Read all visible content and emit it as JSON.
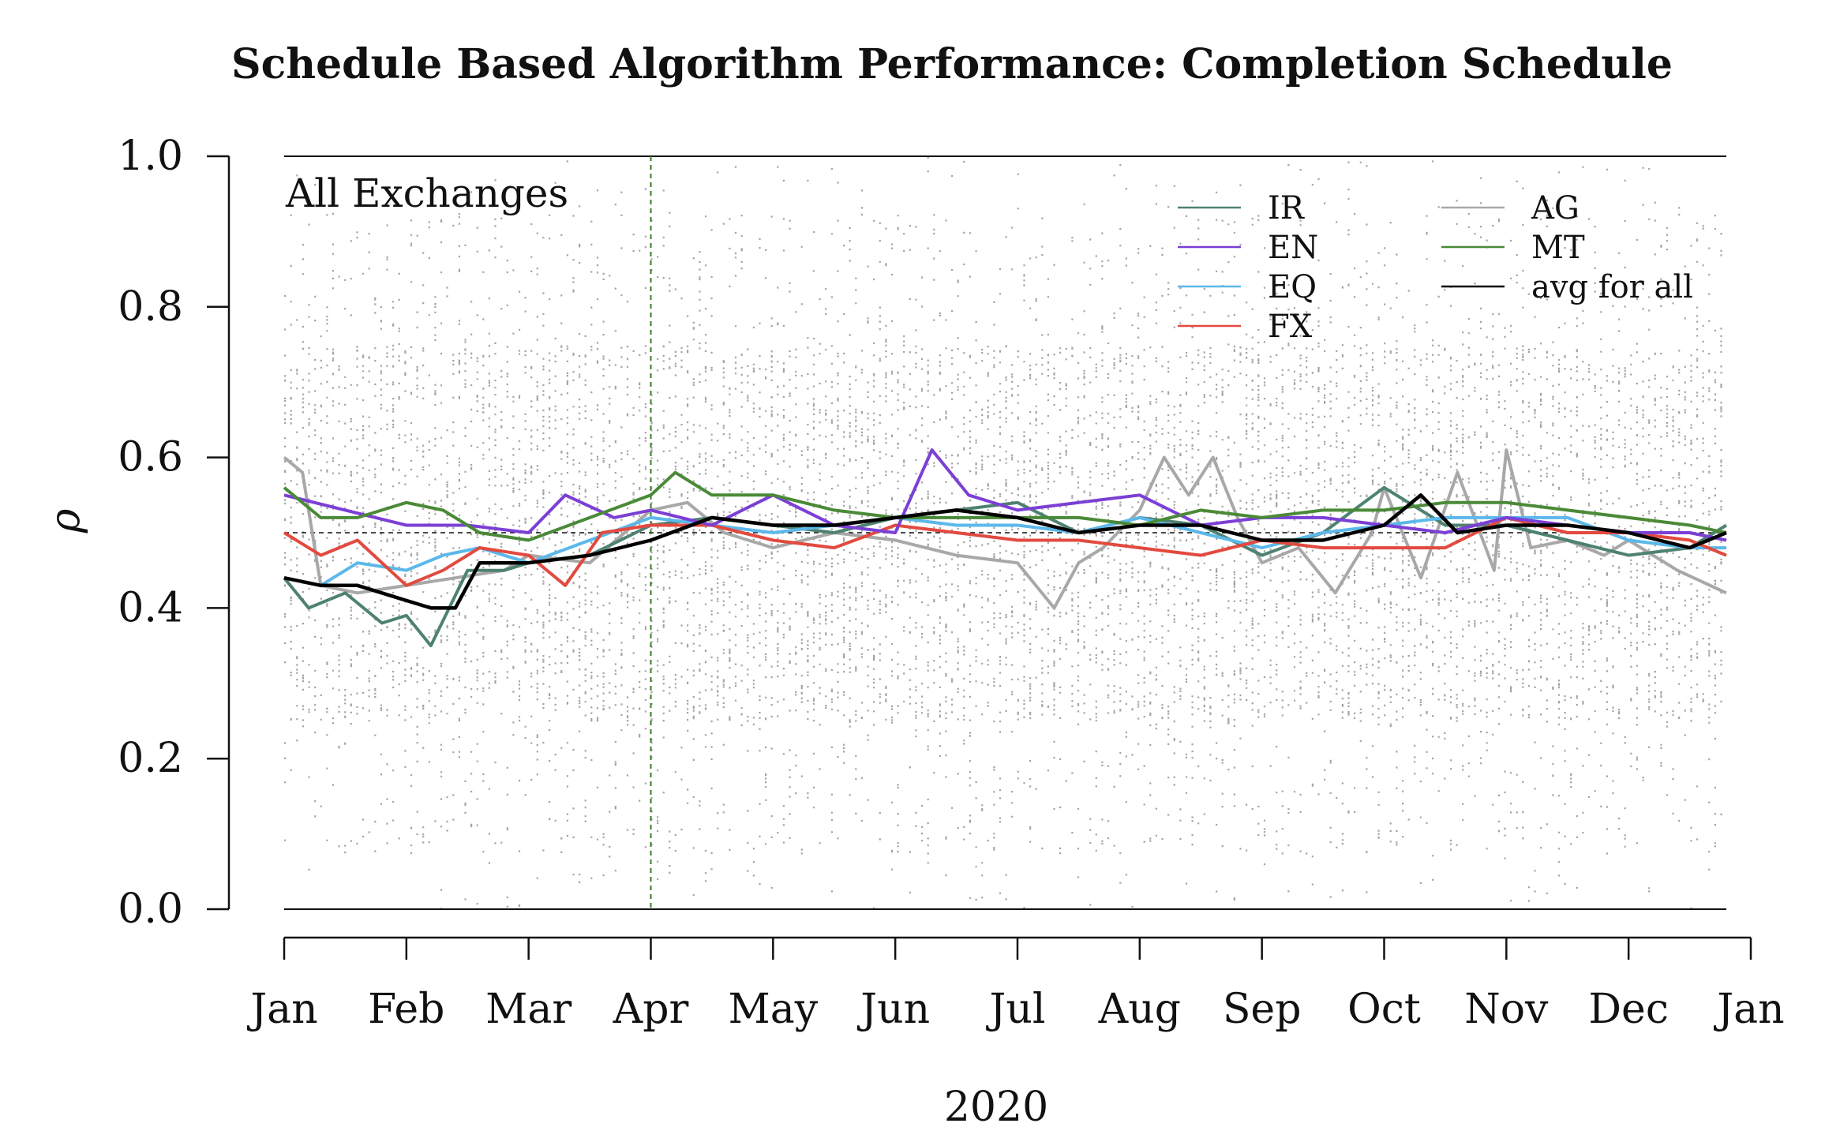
{
  "chart_data": {
    "type": "line",
    "title": "Schedule Based Algorithm Performance: Completion Schedule",
    "panel_label": "All Exchanges",
    "xlabel": "2020",
    "ylabel": "ρ",
    "ylim": [
      0,
      1
    ],
    "yticks": [
      "0.0",
      "0.2",
      "0.4",
      "0.6",
      "0.8",
      "1.0"
    ],
    "x_unit": "month of 2020 (1 = Jan 1, 13 = Jan 1 of next year)",
    "xlim": [
      1,
      13
    ],
    "xticks": [
      "Jan",
      "Feb",
      "Mar",
      "Apr",
      "May",
      "Jun",
      "Jul",
      "Aug",
      "Sep",
      "Oct",
      "Nov",
      "Dec",
      "Jan"
    ],
    "reference_line_y": 0.5,
    "vertical_marker_x": 4,
    "background_points": "dense grey per-day scatter of individual ρ values between 0 and 1",
    "legend_position": "top-right",
    "series": [
      {
        "name": "IR",
        "color": "#4e8270",
        "x": [
          1,
          1.2,
          1.5,
          1.8,
          2.0,
          2.2,
          2.5,
          2.8,
          3.0,
          3.5,
          4.0,
          4.5,
          5.0,
          5.5,
          6.0,
          6.5,
          7.0,
          7.5,
          8.0,
          8.5,
          9.0,
          9.5,
          10.0,
          10.5,
          11.0,
          11.5,
          12.0,
          12.5,
          12.8
        ],
        "y": [
          0.44,
          0.4,
          0.42,
          0.38,
          0.39,
          0.35,
          0.45,
          0.45,
          0.46,
          0.47,
          0.51,
          0.52,
          0.51,
          0.5,
          0.52,
          0.53,
          0.54,
          0.5,
          0.52,
          0.51,
          0.47,
          0.5,
          0.56,
          0.51,
          0.51,
          0.49,
          0.47,
          0.48,
          0.51
        ]
      },
      {
        "name": "EN",
        "color": "#7b3fd6",
        "x": [
          1,
          1.5,
          2.0,
          2.5,
          3.0,
          3.3,
          3.7,
          4.0,
          4.5,
          5.0,
          5.5,
          6.0,
          6.3,
          6.6,
          7.0,
          7.5,
          8.0,
          8.5,
          9.0,
          9.5,
          10.0,
          10.5,
          11.0,
          11.5,
          12.0,
          12.5,
          12.8
        ],
        "y": [
          0.55,
          0.53,
          0.51,
          0.51,
          0.5,
          0.55,
          0.52,
          0.53,
          0.51,
          0.55,
          0.51,
          0.5,
          0.61,
          0.55,
          0.53,
          0.54,
          0.55,
          0.51,
          0.52,
          0.52,
          0.51,
          0.5,
          0.52,
          0.51,
          0.5,
          0.5,
          0.49
        ]
      },
      {
        "name": "EQ",
        "color": "#5bb8ea",
        "x": [
          1,
          1.3,
          1.6,
          2.0,
          2.3,
          2.6,
          3.0,
          3.5,
          4.0,
          4.5,
          5.0,
          5.5,
          6.0,
          6.5,
          7.0,
          7.5,
          8.0,
          8.5,
          9.0,
          9.5,
          10.0,
          10.5,
          11.0,
          11.5,
          12.0,
          12.5,
          12.8
        ],
        "y": [
          0.44,
          0.43,
          0.46,
          0.45,
          0.47,
          0.48,
          0.46,
          0.49,
          0.52,
          0.51,
          0.5,
          0.51,
          0.52,
          0.51,
          0.51,
          0.5,
          0.52,
          0.5,
          0.48,
          0.5,
          0.51,
          0.52,
          0.52,
          0.52,
          0.49,
          0.48,
          0.48
        ]
      },
      {
        "name": "FX",
        "color": "#e24a3f",
        "x": [
          1,
          1.3,
          1.6,
          2.0,
          2.3,
          2.6,
          3.0,
          3.3,
          3.6,
          4.0,
          4.5,
          5.0,
          5.5,
          6.0,
          6.5,
          7.0,
          7.5,
          8.0,
          8.5,
          9.0,
          9.5,
          10.0,
          10.5,
          11.0,
          11.5,
          12.0,
          12.5,
          12.8
        ],
        "y": [
          0.5,
          0.47,
          0.49,
          0.43,
          0.45,
          0.48,
          0.47,
          0.43,
          0.5,
          0.51,
          0.51,
          0.49,
          0.48,
          0.51,
          0.5,
          0.49,
          0.49,
          0.48,
          0.47,
          0.49,
          0.48,
          0.48,
          0.48,
          0.52,
          0.5,
          0.5,
          0.49,
          0.47
        ]
      },
      {
        "name": "AG",
        "color": "#a8a8a8",
        "x": [
          1,
          1.15,
          1.3,
          1.6,
          2.0,
          2.4,
          2.8,
          3.0,
          3.5,
          4.0,
          4.3,
          4.6,
          5.0,
          5.5,
          6.0,
          6.5,
          7.0,
          7.3,
          7.5,
          7.7,
          8.0,
          8.2,
          8.4,
          8.6,
          8.8,
          9.0,
          9.3,
          9.6,
          9.9,
          10.0,
          10.3,
          10.6,
          10.9,
          11.0,
          11.2,
          11.5,
          11.8,
          12.0,
          12.4,
          12.8
        ],
        "y": [
          0.6,
          0.58,
          0.43,
          0.42,
          0.43,
          0.44,
          0.45,
          0.47,
          0.46,
          0.53,
          0.54,
          0.5,
          0.48,
          0.5,
          0.49,
          0.47,
          0.46,
          0.4,
          0.46,
          0.48,
          0.53,
          0.6,
          0.55,
          0.6,
          0.52,
          0.46,
          0.48,
          0.42,
          0.5,
          0.56,
          0.44,
          0.58,
          0.45,
          0.61,
          0.48,
          0.49,
          0.47,
          0.49,
          0.45,
          0.42
        ]
      },
      {
        "name": "MT",
        "color": "#4a8a37",
        "x": [
          1,
          1.3,
          1.6,
          2.0,
          2.3,
          2.6,
          3.0,
          3.5,
          4.0,
          4.2,
          4.5,
          5.0,
          5.5,
          6.0,
          6.5,
          7.0,
          7.5,
          8.0,
          8.5,
          9.0,
          9.5,
          10.0,
          10.5,
          11.0,
          11.5,
          12.0,
          12.5,
          12.8
        ],
        "y": [
          0.56,
          0.52,
          0.52,
          0.54,
          0.53,
          0.5,
          0.49,
          0.52,
          0.55,
          0.58,
          0.55,
          0.55,
          0.53,
          0.52,
          0.52,
          0.52,
          0.52,
          0.51,
          0.53,
          0.52,
          0.53,
          0.53,
          0.54,
          0.54,
          0.53,
          0.52,
          0.51,
          0.5
        ]
      },
      {
        "name": "avg for all",
        "color": "#000000",
        "x": [
          1,
          1.3,
          1.6,
          2.0,
          2.2,
          2.4,
          2.6,
          3.0,
          3.5,
          4.0,
          4.5,
          5.0,
          5.5,
          6.0,
          6.5,
          7.0,
          7.5,
          8.0,
          8.5,
          9.0,
          9.5,
          10.0,
          10.3,
          10.6,
          11.0,
          11.5,
          12.0,
          12.5,
          12.8
        ],
        "y": [
          0.44,
          0.43,
          0.43,
          0.41,
          0.4,
          0.4,
          0.46,
          0.46,
          0.47,
          0.49,
          0.52,
          0.51,
          0.51,
          0.52,
          0.53,
          0.52,
          0.5,
          0.51,
          0.51,
          0.49,
          0.49,
          0.51,
          0.55,
          0.5,
          0.51,
          0.51,
          0.5,
          0.48,
          0.5
        ]
      }
    ]
  }
}
